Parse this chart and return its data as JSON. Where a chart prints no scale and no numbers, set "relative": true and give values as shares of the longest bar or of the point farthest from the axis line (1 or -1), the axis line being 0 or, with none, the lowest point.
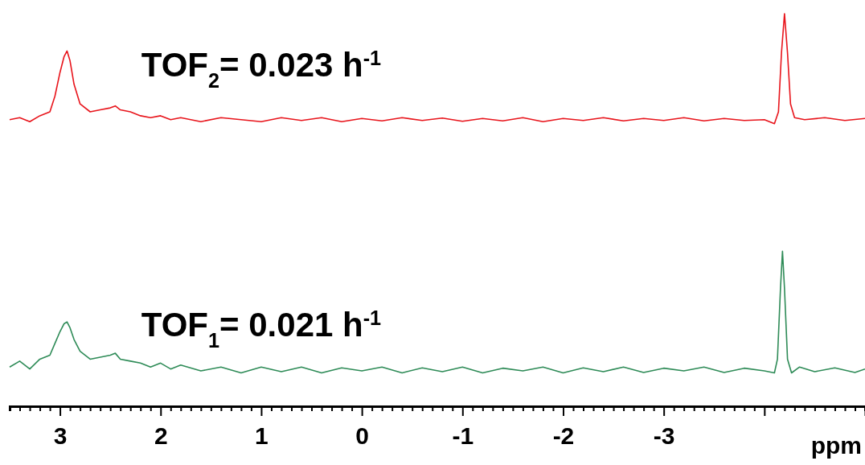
{
  "chart_data": {
    "type": "line",
    "relative": true,
    "xlabel": "ppm",
    "xlim": [
      3.5,
      -5
    ],
    "xticks": [
      {
        "value": 3.5,
        "label": null
      },
      {
        "value": 3.4,
        "label": null
      },
      {
        "value": 3.3,
        "label": null
      },
      {
        "value": 3.2,
        "label": null
      },
      {
        "value": 3.1,
        "label": null
      },
      3,
      {
        "value": 2.9,
        "label": null
      },
      {
        "value": 2.8,
        "label": null
      },
      {
        "value": 2.7,
        "label": null
      },
      {
        "value": 2.6,
        "label": null
      },
      {
        "value": 2.5,
        "label": null
      },
      {
        "value": 2.4,
        "label": null
      },
      {
        "value": 2.3,
        "label": null
      },
      {
        "value": 2.2,
        "label": null
      },
      {
        "value": 2.1,
        "label": null
      },
      2,
      {
        "value": 1.9,
        "label": null
      },
      {
        "value": 1.8,
        "label": null
      },
      {
        "value": 1.7,
        "label": null
      },
      {
        "value": 1.6,
        "label": null
      },
      {
        "value": 1.5,
        "label": null
      },
      {
        "value": 1.4,
        "label": null
      },
      {
        "value": 1.3,
        "label": null
      },
      {
        "value": 1.2,
        "label": null
      },
      {
        "value": 1.1,
        "label": null
      },
      1,
      {
        "value": 0.9,
        "label": null
      },
      {
        "value": 0.8,
        "label": null
      },
      {
        "value": 0.7,
        "label": null
      },
      {
        "value": 0.6,
        "label": null
      },
      {
        "value": 0.5,
        "label": null
      },
      {
        "value": 0.4,
        "label": null
      },
      {
        "value": 0.3,
        "label": null
      },
      {
        "value": 0.2,
        "label": null
      },
      {
        "value": 0.1,
        "label": null
      },
      0,
      {
        "value": -0.1,
        "label": null
      },
      {
        "value": -0.2,
        "label": null
      },
      {
        "value": -0.3,
        "label": null
      },
      {
        "value": -0.4,
        "label": null
      },
      {
        "value": -0.5,
        "label": null
      },
      {
        "value": -0.6,
        "label": null
      },
      {
        "value": -0.7,
        "label": null
      },
      {
        "value": -0.8,
        "label": null
      },
      {
        "value": -0.9,
        "label": null
      },
      -1,
      {
        "value": -1.1,
        "label": null
      },
      {
        "value": -1.2,
        "label": null
      },
      {
        "value": -1.3,
        "label": null
      },
      {
        "value": -1.4,
        "label": null
      },
      {
        "value": -1.5,
        "label": null
      },
      {
        "value": -1.6,
        "label": null
      },
      {
        "value": -1.7,
        "label": null
      },
      {
        "value": -1.8,
        "label": null
      },
      {
        "value": -1.9,
        "label": null
      },
      -2,
      {
        "value": -2.1,
        "label": null
      },
      {
        "value": -2.2,
        "label": null
      },
      {
        "value": -2.3,
        "label": null
      },
      {
        "value": -2.4,
        "label": null
      },
      {
        "value": -2.5,
        "label": null
      },
      {
        "value": -2.6,
        "label": null
      },
      {
        "value": -2.7,
        "label": null
      },
      {
        "value": -2.8,
        "label": null
      },
      {
        "value": -2.9,
        "label": null
      },
      -3,
      {
        "value": -3.1,
        "label": null
      },
      {
        "value": -3.2,
        "label": null
      },
      {
        "value": -3.3,
        "label": null
      },
      {
        "value": -3.4,
        "label": null
      },
      {
        "value": -3.5,
        "label": null
      },
      {
        "value": -3.6,
        "label": null
      },
      {
        "value": -3.7,
        "label": null
      },
      {
        "value": -3.8,
        "label": null
      },
      {
        "value": -3.9,
        "label": null
      },
      {
        "value": -4,
        "label": null
      },
      {
        "value": -4.1,
        "label": null
      },
      {
        "value": -4.2,
        "label": null
      },
      {
        "value": -4.3,
        "label": null
      },
      {
        "value": -4.4,
        "label": null
      },
      {
        "value": -4.5,
        "label": null
      },
      {
        "value": -4.6,
        "label": null
      },
      {
        "value": -4.7,
        "label": null
      },
      {
        "value": -4.8,
        "label": null
      },
      {
        "value": -4.9,
        "label": null
      },
      {
        "value": -5,
        "label": null
      }
    ],
    "annotations": [
      "TOF$_{2}$= 0.023 h$^{-1}$",
      "TOF$_{1}$= 0.021 h$^{-1}$"
    ],
    "series": [
      {
        "color": "#e8141b",
        "x": [
          3.5,
          3.4,
          3.3,
          3.2,
          3.1,
          3.05,
          3.0,
          2.96,
          2.93,
          2.9,
          2.86,
          2.8,
          2.7,
          2.6,
          2.5,
          2.45,
          2.4,
          2.3,
          2.2,
          2.1,
          2.0,
          1.9,
          1.8,
          1.6,
          1.4,
          1.2,
          1.0,
          0.8,
          0.6,
          0.4,
          0.2,
          0,
          -0.2,
          -0.4,
          -0.6,
          -0.8,
          -1.0,
          -1.2,
          -1.4,
          -1.6,
          -1.8,
          -2.0,
          -2.2,
          -2.4,
          -2.6,
          -2.8,
          -3.0,
          -3.2,
          -3.4,
          -3.6,
          -3.8,
          -4.0,
          -4.1,
          -4.14,
          -4.17,
          -4.2,
          -4.23,
          -4.26,
          -4.3,
          -4.4,
          -4.6,
          -4.8,
          -5.0
        ],
        "values": [
          0.73,
          0.735,
          0.725,
          0.74,
          0.75,
          0.79,
          0.85,
          0.89,
          0.905,
          0.88,
          0.82,
          0.77,
          0.75,
          0.755,
          0.76,
          0.765,
          0.755,
          0.75,
          0.74,
          0.735,
          0.74,
          0.73,
          0.735,
          0.725,
          0.735,
          0.73,
          0.725,
          0.735,
          0.728,
          0.735,
          0.725,
          0.733,
          0.727,
          0.735,
          0.728,
          0.734,
          0.726,
          0.733,
          0.727,
          0.735,
          0.725,
          0.733,
          0.728,
          0.735,
          0.727,
          0.733,
          0.728,
          0.735,
          0.727,
          0.733,
          0.728,
          0.73,
          0.72,
          0.75,
          0.9,
          1.0,
          0.9,
          0.77,
          0.735,
          0.73,
          0.735,
          0.728,
          0.733
        ]
      },
      {
        "color": "#2e8b57",
        "x": [
          3.5,
          3.4,
          3.3,
          3.2,
          3.1,
          3.05,
          3.0,
          2.96,
          2.93,
          2.9,
          2.86,
          2.8,
          2.7,
          2.6,
          2.5,
          2.45,
          2.4,
          2.3,
          2.2,
          2.1,
          2.0,
          1.9,
          1.8,
          1.6,
          1.4,
          1.2,
          1.0,
          0.8,
          0.6,
          0.4,
          0.2,
          0,
          -0.2,
          -0.4,
          -0.6,
          -0.8,
          -1.0,
          -1.2,
          -1.4,
          -1.6,
          -1.8,
          -2.0,
          -2.2,
          -2.4,
          -2.6,
          -2.8,
          -3.0,
          -3.2,
          -3.4,
          -3.6,
          -3.8,
          -4.0,
          -4.1,
          -4.13,
          -4.16,
          -4.18,
          -4.2,
          -4.23,
          -4.27,
          -4.35,
          -4.5,
          -4.7,
          -4.9,
          -5.0
        ],
        "values": [
          0.1,
          0.115,
          0.095,
          0.12,
          0.13,
          0.16,
          0.19,
          0.21,
          0.215,
          0.2,
          0.17,
          0.14,
          0.12,
          0.125,
          0.13,
          0.135,
          0.12,
          0.115,
          0.11,
          0.1,
          0.11,
          0.095,
          0.105,
          0.09,
          0.1,
          0.085,
          0.1,
          0.088,
          0.1,
          0.085,
          0.098,
          0.09,
          0.1,
          0.085,
          0.098,
          0.088,
          0.1,
          0.085,
          0.097,
          0.09,
          0.1,
          0.085,
          0.098,
          0.088,
          0.1,
          0.086,
          0.097,
          0.09,
          0.1,
          0.086,
          0.097,
          0.09,
          0.085,
          0.12,
          0.3,
          0.395,
          0.3,
          0.12,
          0.085,
          0.1,
          0.088,
          0.098,
          0.086,
          0.095
        ]
      }
    ]
  }
}
